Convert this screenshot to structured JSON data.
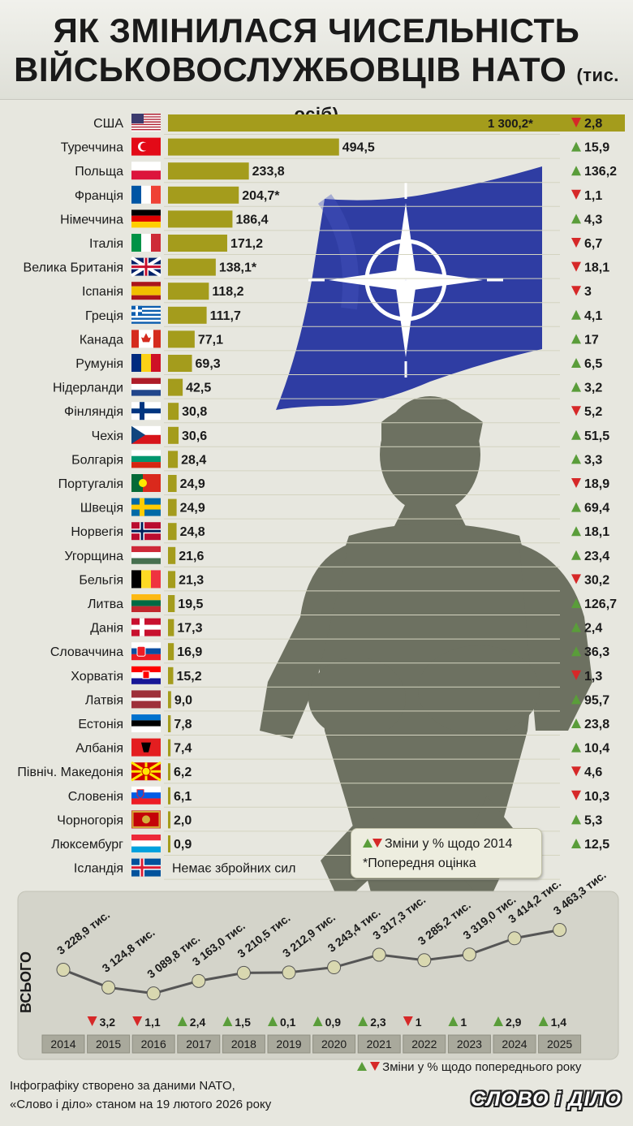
{
  "title_line1": "ЯК ЗМІНИЛАСЯ ЧИСЕЛЬНІСТЬ",
  "title_line2": "ВІЙСЬКОВОСЛУЖБОВЦІВ НАТО",
  "title_unit": "(тис. осіб)",
  "legend_change_2014": "Зміни у % щодо 2014",
  "legend_estimate": "*Попередня оцінка",
  "legend_change_prev": "Зміни у % щодо попереднього року",
  "total_label": "ВСЬОГО",
  "iceland_note": "Немає збройних сил",
  "footer_line1": "Інфографіку створено за даними NATO,",
  "footer_line2": "«Слово і діло» станом на 19 лютого 2026 року",
  "brand": "СЛОВО і ДІЛО",
  "colors": {
    "bar": "#a49c1c",
    "up": "#5a9d3a",
    "down": "#d62828",
    "line": "#555555"
  },
  "chart_data": [
    {
      "type": "bar",
      "orientation": "horizontal",
      "unit": "тис. осіб",
      "categories": [
        "США",
        "Туреччина",
        "Польща",
        "Франція",
        "Німеччина",
        "Італія",
        "Велика Британія",
        "Іспанія",
        "Греція",
        "Канада",
        "Румунія",
        "Нідерланди",
        "Фінляндія",
        "Чехія",
        "Болгарія",
        "Португалія",
        "Швеція",
        "Норвегія",
        "Угорщина",
        "Бельгія",
        "Литва",
        "Данія",
        "Словаччина",
        "Хорватія",
        "Латвія",
        "Естонія",
        "Албанія",
        "Північ. Македонія",
        "Словенія",
        "Чорногорія",
        "Люксембург",
        "Ісландія"
      ],
      "values": [
        1300.2,
        494.5,
        233.8,
        204.7,
        186.4,
        171.2,
        138.1,
        118.2,
        111.7,
        77.1,
        69.3,
        42.5,
        30.8,
        30.6,
        28.4,
        24.9,
        24.9,
        24.8,
        21.6,
        21.3,
        19.5,
        17.3,
        16.9,
        15.2,
        9.0,
        7.8,
        7.4,
        6.2,
        6.1,
        2.0,
        0.9,
        null
      ],
      "value_labels": [
        "1 300,2*",
        "494,5",
        "233,8",
        "204,7*",
        "186,4",
        "171,2",
        "138,1*",
        "118,2",
        "111,7",
        "77,1",
        "69,3",
        "42,5",
        "30,8",
        "30,6",
        "28,4",
        "24,9",
        "24,9",
        "24,8",
        "21,6",
        "21,3",
        "19,5",
        "17,3",
        "16,9",
        "15,2",
        "9,0",
        "7,8",
        "7,4",
        "6,2",
        "6,1",
        "2,0",
        "0,9",
        ""
      ],
      "change_vs_2014": [
        {
          "dir": "down",
          "label": "2,8"
        },
        {
          "dir": "up",
          "label": "15,9"
        },
        {
          "dir": "up",
          "label": "136,2"
        },
        {
          "dir": "down",
          "label": "1,1"
        },
        {
          "dir": "up",
          "label": "4,3"
        },
        {
          "dir": "down",
          "label": "6,7"
        },
        {
          "dir": "down",
          "label": "18,1"
        },
        {
          "dir": "down",
          "label": "3"
        },
        {
          "dir": "up",
          "label": "4,1"
        },
        {
          "dir": "up",
          "label": "17"
        },
        {
          "dir": "up",
          "label": "6,5"
        },
        {
          "dir": "up",
          "label": "3,2"
        },
        {
          "dir": "down",
          "label": "5,2"
        },
        {
          "dir": "up",
          "label": "51,5"
        },
        {
          "dir": "up",
          "label": "3,3"
        },
        {
          "dir": "down",
          "label": "18,9"
        },
        {
          "dir": "up",
          "label": "69,4"
        },
        {
          "dir": "up",
          "label": "18,1"
        },
        {
          "dir": "up",
          "label": "23,4"
        },
        {
          "dir": "down",
          "label": "30,2"
        },
        {
          "dir": "up",
          "label": "126,7"
        },
        {
          "dir": "up",
          "label": "2,4"
        },
        {
          "dir": "up",
          "label": "36,3"
        },
        {
          "dir": "down",
          "label": "1,3"
        },
        {
          "dir": "up",
          "label": "95,7"
        },
        {
          "dir": "up",
          "label": "23,8"
        },
        {
          "dir": "up",
          "label": "10,4"
        },
        {
          "dir": "down",
          "label": "4,6"
        },
        {
          "dir": "down",
          "label": "10,3"
        },
        {
          "dir": "up",
          "label": "5,3"
        },
        {
          "dir": "up",
          "label": "12,5"
        },
        null
      ]
    },
    {
      "type": "line",
      "x": [
        "2014",
        "2015",
        "2016",
        "2017",
        "2018",
        "2019",
        "2020",
        "2021",
        "2022",
        "2023",
        "2024",
        "2025"
      ],
      "y": [
        3228.9,
        3124.8,
        3089.8,
        3163.0,
        3210.5,
        3212.9,
        3243.4,
        3317.3,
        3285.2,
        3319.0,
        3414.2,
        3463.3
      ],
      "point_labels": [
        "3 228,9 тис.",
        "3 124,8 тис.",
        "3 089,8 тис.",
        "3 163,0 тис.",
        "3 210,5 тис.",
        "3 212,9 тис.",
        "3 243,4 тис.",
        "3 317,3 тис.",
        "3 285,2 тис.",
        "3 319,0 тис.",
        "3 414,2 тис.",
        "3 463,3 тис."
      ],
      "change_vs_prev_year": [
        null,
        {
          "dir": "down",
          "label": "3,2"
        },
        {
          "dir": "down",
          "label": "1,1"
        },
        {
          "dir": "up",
          "label": "2,4"
        },
        {
          "dir": "up",
          "label": "1,5"
        },
        {
          "dir": "up",
          "label": "0,1"
        },
        {
          "dir": "up",
          "label": "0,9"
        },
        {
          "dir": "up",
          "label": "2,3"
        },
        {
          "dir": "down",
          "label": "1"
        },
        {
          "dir": "up",
          "label": "1"
        },
        {
          "dir": "up",
          "label": "2,9"
        },
        {
          "dir": "up",
          "label": "1,4"
        }
      ]
    }
  ]
}
